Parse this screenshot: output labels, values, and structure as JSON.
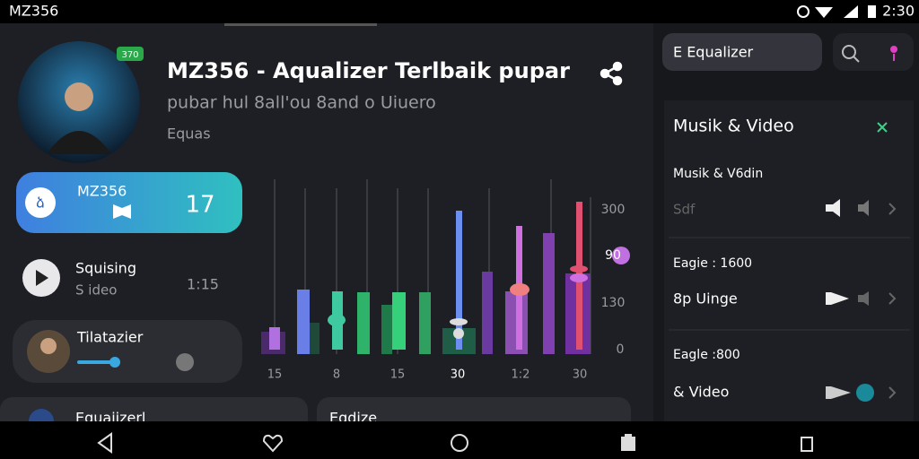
{
  "status_bar": {
    "app": "MZ356",
    "time": "2:30"
  },
  "header": {
    "title": "MZ356 - Aqualizer Terlbaik  pupar",
    "subtitle": "pubar hul 8all'ou 8and o Uiuero",
    "caption": "Equas",
    "badge": "370"
  },
  "left": {
    "active": {
      "icon": "ձ",
      "name": "MZ356",
      "count": "17"
    },
    "track": {
      "title": "Squising",
      "subtitle": "S ideo",
      "time": "1:15"
    },
    "player": {
      "title": "Tilatazier"
    },
    "cards": [
      "Equaiizerl",
      "Eqdize"
    ]
  },
  "equalizer": {
    "scale": [
      "300",
      "90",
      "130",
      "0"
    ],
    "bands": [
      "15",
      "8",
      "15",
      "30",
      "1:2",
      "30"
    ]
  },
  "sidebar": {
    "search": "E Equalizer",
    "section": "Musik & Video",
    "items": [
      {
        "title": "Musik & V6din",
        "sub": "Sdf"
      },
      {
        "title": "Eagie : 1600",
        "sub": "8p Uinge"
      },
      {
        "title": "Eagle :800",
        "sub": "& Video"
      }
    ]
  }
}
